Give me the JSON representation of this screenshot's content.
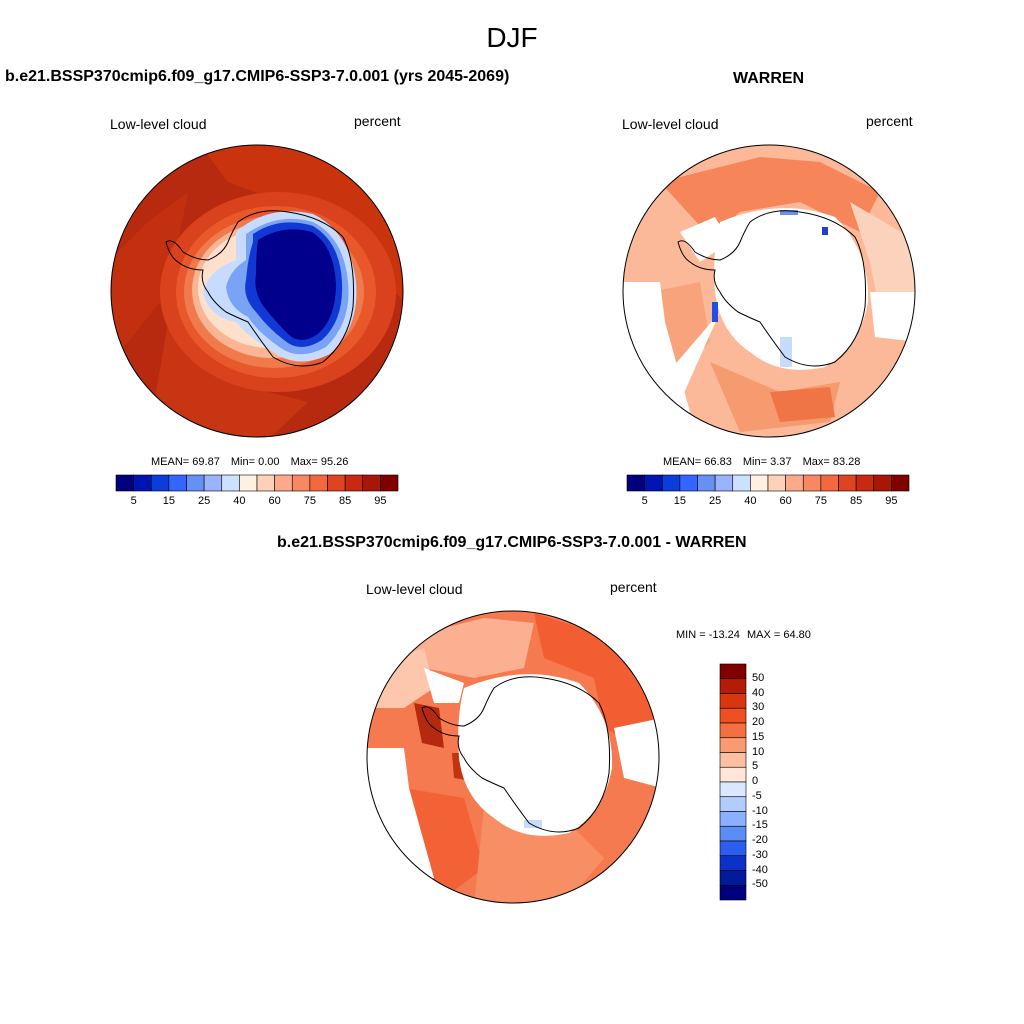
{
  "figure_title": "DJF",
  "panels": [
    {
      "title": "b.e21.BSSP370cmip6.f09_g17.CMIP6-SSP3-7.0.001 (yrs 2045-2069)",
      "variable": "Low-level cloud",
      "units": "percent",
      "stats": {
        "mean_label": "MEAN=",
        "mean": "69.87",
        "min_label": "Min=",
        "min": "0.00",
        "max_label": "Max=",
        "max": "95.26"
      }
    },
    {
      "title": "WARREN",
      "variable": "Low-level cloud",
      "units": "percent",
      "stats": {
        "mean_label": "MEAN=",
        "mean": "66.83",
        "min_label": "Min=",
        "min": "3.37",
        "max_label": "Max=",
        "max": "83.28"
      }
    },
    {
      "title": "b.e21.BSSP370cmip6.f09_g17.CMIP6-SSP3-7.0.001 - WARREN",
      "variable": "Low-level cloud",
      "units": "percent",
      "stats": {
        "min_label": "MIN =",
        "min": "-13.24",
        "max_label": "MAX =",
        "max": "64.80"
      }
    }
  ],
  "colorbar_abs": {
    "colors": [
      "#00007f",
      "#0014b3",
      "#0a3dd9",
      "#3366ff",
      "#6690f2",
      "#99b3ff",
      "#cce0ff",
      "#fff1e0",
      "#ffd1b8",
      "#fcaa8a",
      "#f78861",
      "#f2693f",
      "#e0431f",
      "#c72a10",
      "#a81605",
      "#800000"
    ],
    "labels": [
      "5",
      "15",
      "25",
      "40",
      "60",
      "75",
      "85",
      "95"
    ]
  },
  "colorbar_diff": {
    "colors": [
      "#800000",
      "#b51c05",
      "#d93610",
      "#f0501f",
      "#f57040",
      "#fa9a72",
      "#fcc0a0",
      "#ffe6d6",
      "#d9e8ff",
      "#b3ccff",
      "#8cb0ff",
      "#5c8cf5",
      "#2e5ef0",
      "#0a32c8",
      "#001a99",
      "#00007f"
    ],
    "labels": [
      "50",
      "40",
      "30",
      "20",
      "15",
      "10",
      "5",
      "0",
      "-5",
      "-10",
      "-15",
      "-20",
      "-30",
      "-40",
      "-50"
    ]
  },
  "map_colors": {
    "ocean_high": "#b82a0f",
    "ocean_mid": "#d9421c",
    "ring1": "#f07a4c",
    "ring2": "#fbb595",
    "ring3": "#ffe0cc",
    "ice_light": "#c7dbff",
    "ice_mid": "#7aa2f5",
    "ice_deep": "#1238d4",
    "ice_core": "#00008c",
    "missing": "#ffffff",
    "coast": "#000000"
  }
}
